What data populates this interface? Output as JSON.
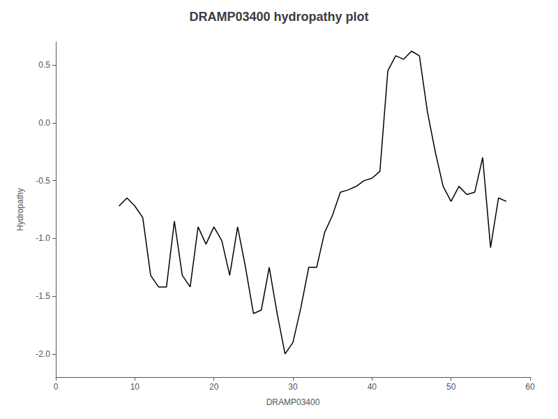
{
  "chart_data": {
    "type": "line",
    "title": "DRAMP03400 hydropathy plot",
    "xlabel": "DRAMP03400",
    "ylabel": "Hydropathy",
    "x": [
      8,
      9,
      10,
      11,
      12,
      13,
      14,
      15,
      16,
      17,
      18,
      19,
      20,
      21,
      22,
      23,
      24,
      25,
      26,
      27,
      28,
      29,
      30,
      31,
      32,
      33,
      34,
      35,
      36,
      37,
      38,
      39,
      40,
      41,
      42,
      43,
      44,
      45,
      46,
      47,
      48,
      49,
      50,
      51,
      52,
      53,
      54,
      55,
      56,
      57
    ],
    "values": [
      -0.72,
      -0.65,
      -0.72,
      -0.82,
      -1.32,
      -1.42,
      -1.42,
      -0.85,
      -1.32,
      -1.42,
      -0.9,
      -1.05,
      -0.9,
      -1.02,
      -1.32,
      -0.9,
      -1.25,
      -1.65,
      -1.62,
      -1.25,
      -1.65,
      -2.0,
      -1.9,
      -1.6,
      -1.25,
      -1.25,
      -0.95,
      -0.8,
      -0.6,
      -0.58,
      -0.55,
      -0.5,
      -0.48,
      -0.42,
      0.45,
      0.58,
      0.55,
      0.62,
      0.58,
      0.1,
      -0.25,
      -0.55,
      -0.68,
      -0.55,
      -0.62,
      -0.6,
      -0.3,
      -1.08,
      -0.65,
      -0.68
    ],
    "color": "black",
    "xlim": [
      0,
      60
    ],
    "xticks": [
      0,
      10,
      20,
      30,
      40,
      50,
      60
    ],
    "ylim": [
      -2.2,
      0.7
    ],
    "yticks": [
      {
        "value": -2.0,
        "label": "-2.0"
      },
      {
        "value": -1.5,
        "label": "-1.5"
      },
      {
        "value": -1.0,
        "label": "-1.0"
      },
      {
        "value": -0.5,
        "label": "-0.5"
      },
      {
        "value": 0.0,
        "label": "0.0"
      },
      {
        "value": 0.5,
        "label": "0.5"
      }
    ],
    "grid": false
  }
}
